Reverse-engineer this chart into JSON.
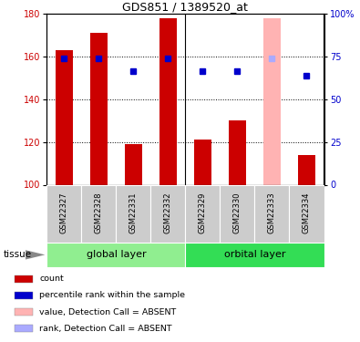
{
  "title": "GDS851 / 1389520_at",
  "samples": [
    "GSM22327",
    "GSM22328",
    "GSM22331",
    "GSM22332",
    "GSM22329",
    "GSM22330",
    "GSM22333",
    "GSM22334"
  ],
  "bar_values": [
    163,
    171,
    119,
    178,
    121,
    130,
    178,
    114
  ],
  "rank_values": [
    159,
    159,
    153,
    159,
    153,
    153,
    159,
    151
  ],
  "absent_flags": [
    false,
    false,
    false,
    false,
    false,
    false,
    true,
    false
  ],
  "bar_color_normal": "#CC0000",
  "bar_color_absent": "#FFB3B3",
  "rank_color_normal": "#0000CC",
  "rank_color_absent": "#AAAAFF",
  "groups": [
    {
      "label": "global layer",
      "start": 0,
      "end": 4,
      "color": "#90EE90"
    },
    {
      "label": "orbital layer",
      "start": 4,
      "end": 8,
      "color": "#33DD55"
    }
  ],
  "ylim": [
    100,
    180
  ],
  "yticks_left": [
    100,
    120,
    140,
    160,
    180
  ],
  "yticks_right": [
    0,
    25,
    50,
    75,
    100
  ],
  "ylabel_left_color": "#CC0000",
  "ylabel_right_color": "#0000CC",
  "tissue_label": "tissue",
  "bar_width": 0.5,
  "rank_marker": "s",
  "rank_marker_size": 4,
  "background_color": "#FFFFFF",
  "legend_items": [
    {
      "color": "#CC0000",
      "label": "count"
    },
    {
      "color": "#0000CC",
      "label": "percentile rank within the sample"
    },
    {
      "color": "#FFB3B3",
      "label": "value, Detection Call = ABSENT"
    },
    {
      "color": "#AAAAFF",
      "label": "rank, Detection Call = ABSENT"
    }
  ]
}
